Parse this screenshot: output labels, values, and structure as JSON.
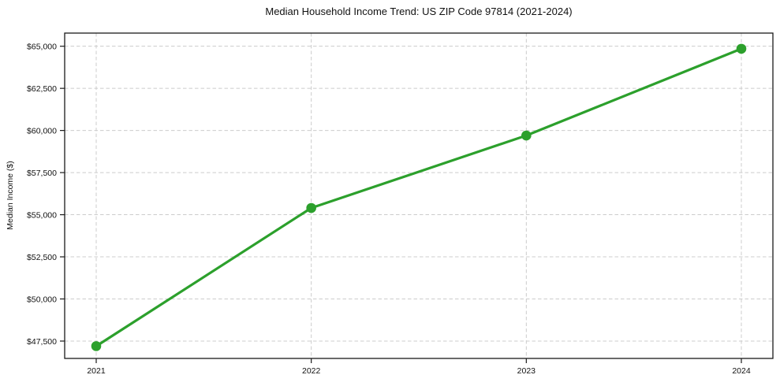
{
  "chart_data": {
    "type": "line",
    "title": "Median Household Income Trend: US ZIP Code 97814 (2021-2024)",
    "xlabel": "",
    "ylabel": "Median Income ($)",
    "x": [
      2021,
      2022,
      2023,
      2024
    ],
    "x_tick_labels": [
      "2021",
      "2022",
      "2023",
      "2024"
    ],
    "values": [
      47200,
      55400,
      59700,
      64850
    ],
    "y_ticks": [
      47500,
      50000,
      52500,
      55000,
      57500,
      60000,
      62500,
      65000
    ],
    "y_tick_labels": [
      "$47,500",
      "$50,000",
      "$52,500",
      "$55,000",
      "$57,500",
      "$60,000",
      "$62,500",
      "$65,000"
    ],
    "ylim": [
      46470,
      65780
    ],
    "grid": true,
    "grid_style": "dashed",
    "legend_position": "none",
    "line_color": "#2ca02c",
    "marker": "circle",
    "grid_color": "#cccccc",
    "axis_color": "#1a1a1a",
    "text_color": "#111111",
    "background_color": "#ffffff"
  }
}
